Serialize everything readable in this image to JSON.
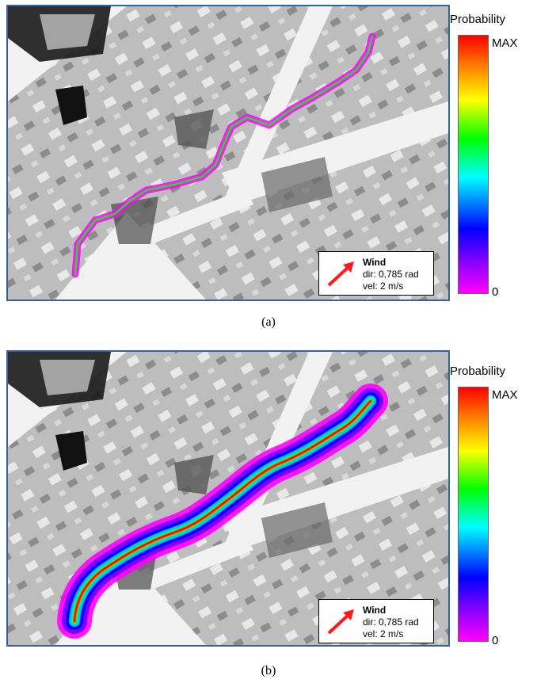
{
  "legend": {
    "title": "Probability",
    "max_label": "MAX",
    "min_label": "0"
  },
  "wind": {
    "title": "Wind",
    "dir": "dir: 0,785 rad",
    "vel": "vel: 2 m/s",
    "arrow_color": "#ff1a1a"
  },
  "panels": [
    {
      "caption": "(a)"
    },
    {
      "caption": "(b)"
    }
  ],
  "colors": {
    "frame": "#3a5f9a",
    "path_green": "#20e020",
    "path_magenta": "#ff00ff"
  }
}
